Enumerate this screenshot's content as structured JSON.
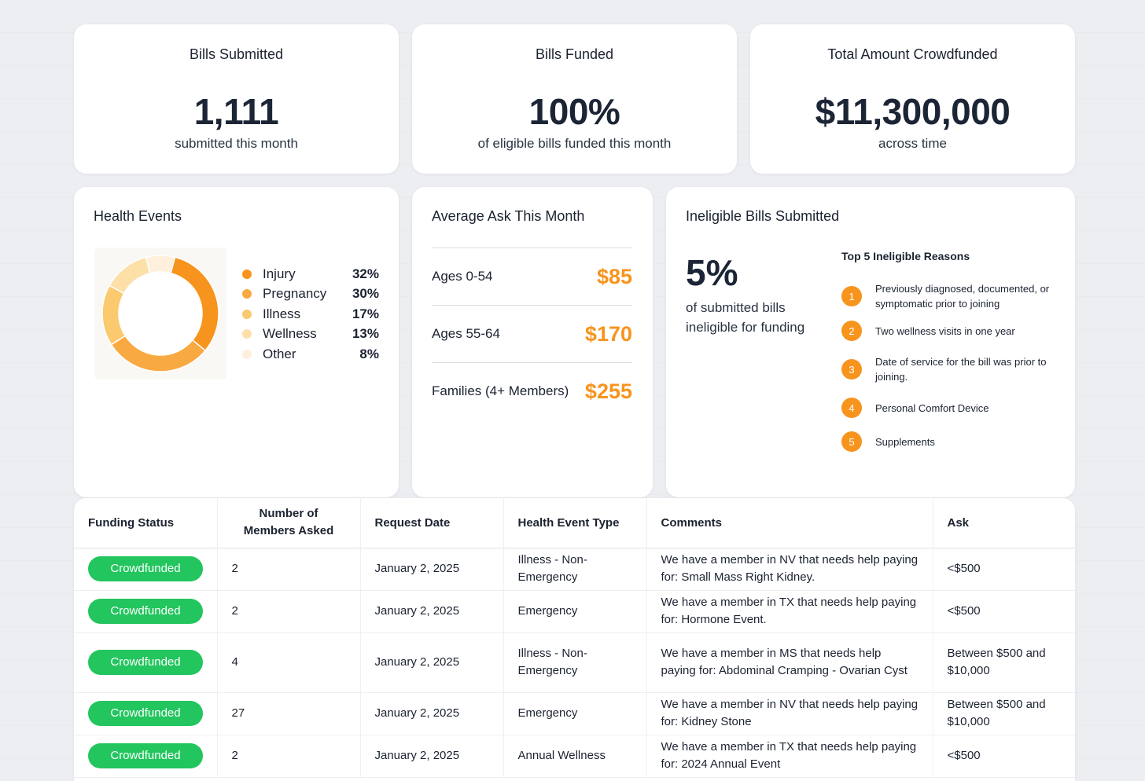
{
  "kpis": [
    {
      "title": "Bills Submitted",
      "value": "1,111",
      "sub": "submitted this month"
    },
    {
      "title": "Bills Funded",
      "value": "100%",
      "sub": "of eligible bills funded this month"
    },
    {
      "title": "Total Amount Crowdfunded",
      "value": "$11,300,000",
      "sub": "across time"
    }
  ],
  "health": {
    "title": "Health Events",
    "items": [
      {
        "label": "Injury",
        "pct": "32%",
        "value": 32,
        "color": "#f7941d"
      },
      {
        "label": "Pregnancy",
        "pct": "30%",
        "value": 30,
        "color": "#f9a941"
      },
      {
        "label": "Illness",
        "pct": "17%",
        "value": 17,
        "color": "#fbc96e"
      },
      {
        "label": "Wellness",
        "pct": "13%",
        "value": 13,
        "color": "#fde0a8"
      },
      {
        "label": "Other",
        "pct": "8%",
        "value": 8,
        "color": "#fef0dc"
      }
    ]
  },
  "ask": {
    "title": "Average Ask This Month",
    "rows": [
      {
        "label": "Ages 0-54",
        "value": "$85"
      },
      {
        "label": "Ages 55-64",
        "value": "$170"
      },
      {
        "label": "Families (4+ Members)",
        "value": "$255"
      }
    ]
  },
  "ineligible": {
    "title": "Ineligible Bills Submitted",
    "pct": "5%",
    "sub": "of submitted bills ineligible for funding",
    "reasons_title": "Top 5 Ineligible Reasons",
    "reasons": [
      {
        "num": "1",
        "text": "Previously diagnosed, documented, or symptomatic prior to joining"
      },
      {
        "num": "2",
        "text": "Two wellness visits in one year"
      },
      {
        "num": "3",
        "text": "Date of service for the bill was prior to joining."
      },
      {
        "num": "4",
        "text": "Personal Comfort Device"
      },
      {
        "num": "5",
        "text": "Supplements"
      }
    ]
  },
  "table": {
    "headers": [
      "Funding Status",
      "Number of Members Asked",
      "Request Date",
      "Health Event Type",
      "Comments",
      "Ask"
    ],
    "rows": [
      {
        "status": "Crowdfunded",
        "members": "2",
        "date": "January 2, 2025",
        "type": "Illness - Non-Emergency",
        "comment": "We have a member in NV that needs help paying for: Small Mass Right Kidney.",
        "ask": "<$500"
      },
      {
        "status": "Crowdfunded",
        "members": "2",
        "date": "January 2, 2025",
        "type": "Emergency",
        "comment": "We have a member in TX that needs help paying for: Hormone Event.",
        "ask": "<$500"
      },
      {
        "status": "Crowdfunded",
        "members": "4",
        "date": "January 2, 2025",
        "type": "Illness - Non-Emergency",
        "comment": "We have a member in MS that needs help paying for: Abdominal Cramping - Ovarian Cyst",
        "ask": "Between $500 and $10,000"
      },
      {
        "status": "Crowdfunded",
        "members": "27",
        "date": "January 2, 2025",
        "type": "Emergency",
        "comment": "We have a member in NV that needs help paying for: Kidney Stone",
        "ask": "Between $500 and $10,000"
      },
      {
        "status": "Crowdfunded",
        "members": "2",
        "date": "January 2, 2025",
        "type": "Annual Wellness",
        "comment": "We have a member in TX that needs help paying for: 2024 Annual Event",
        "ask": "<$500"
      }
    ]
  },
  "colors": {
    "accent": "#f7941d",
    "success": "#22c55e"
  }
}
